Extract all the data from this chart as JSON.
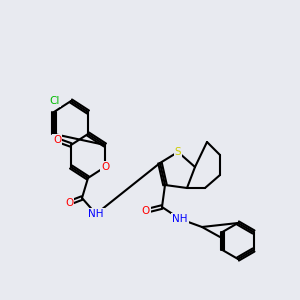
{
  "background_color": "#e8eaf0",
  "bond_color": "#000000",
  "bond_lw": 1.5,
  "atom_colors": {
    "O": "#ff0000",
    "N": "#0000ff",
    "S": "#cccc00",
    "Cl": "#00bb00",
    "C": "#000000"
  },
  "font_size": 7.5
}
